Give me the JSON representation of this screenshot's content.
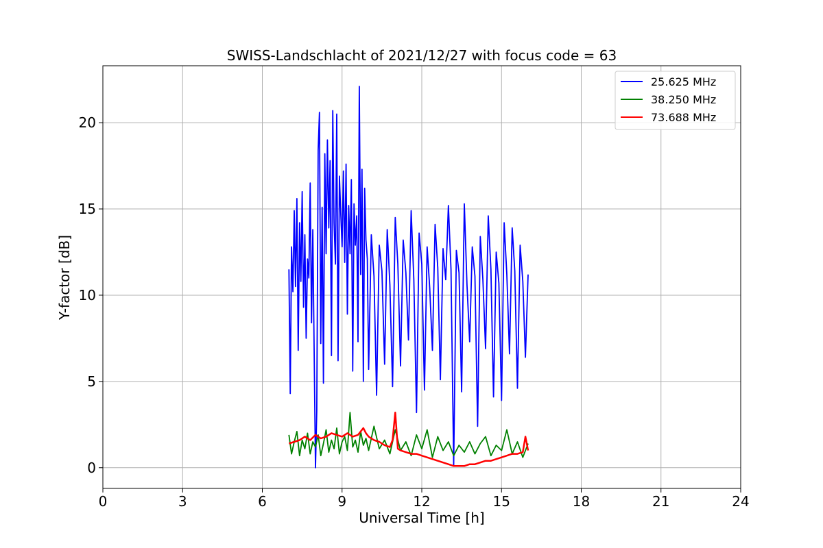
{
  "chart_data": {
    "type": "line",
    "title": "SWISS-Landschlacht of 2021/12/27 with focus code = 63",
    "xlabel": "Universal Time [h]",
    "ylabel": "Y-factor [dB]",
    "xlim": [
      0,
      24
    ],
    "ylim": [
      -1.2,
      23.3
    ],
    "xticks": [
      0,
      3,
      6,
      9,
      12,
      15,
      18,
      21,
      24
    ],
    "yticks": [
      0,
      5,
      10,
      15,
      20
    ],
    "grid": true,
    "legend_position": "top-right",
    "series": [
      {
        "name": "  25.625 MHz",
        "color": "#0000ff",
        "x": [
          7.0,
          7.05,
          7.1,
          7.15,
          7.2,
          7.25,
          7.3,
          7.35,
          7.4,
          7.45,
          7.5,
          7.55,
          7.6,
          7.65,
          7.7,
          7.75,
          7.8,
          7.85,
          7.9,
          7.95,
          8.0,
          8.05,
          8.1,
          8.15,
          8.2,
          8.25,
          8.3,
          8.35,
          8.4,
          8.45,
          8.5,
          8.55,
          8.6,
          8.65,
          8.7,
          8.75,
          8.8,
          8.85,
          8.9,
          8.95,
          9.0,
          9.05,
          9.1,
          9.15,
          9.2,
          9.25,
          9.3,
          9.35,
          9.4,
          9.45,
          9.5,
          9.55,
          9.6,
          9.65,
          9.7,
          9.75,
          9.8,
          9.85,
          9.9,
          9.95,
          10.0,
          10.1,
          10.2,
          10.3,
          10.4,
          10.5,
          10.6,
          10.7,
          10.8,
          10.9,
          11.0,
          11.1,
          11.2,
          11.3,
          11.4,
          11.5,
          11.6,
          11.7,
          11.8,
          11.9,
          12.0,
          12.1,
          12.2,
          12.3,
          12.4,
          12.5,
          12.6,
          12.7,
          12.8,
          12.9,
          13.0,
          13.1,
          13.2,
          13.3,
          13.4,
          13.5,
          13.6,
          13.7,
          13.8,
          13.9,
          14.0,
          14.1,
          14.2,
          14.3,
          14.4,
          14.5,
          14.6,
          14.7,
          14.8,
          14.9,
          15.0,
          15.1,
          15.2,
          15.3,
          15.4,
          15.5,
          15.6,
          15.7,
          15.8,
          15.9,
          16.0
        ],
        "y": [
          11.5,
          4.3,
          12.8,
          10.2,
          14.9,
          10.5,
          15.6,
          6.8,
          14.2,
          10.8,
          16.0,
          9.3,
          13.5,
          7.5,
          12.1,
          11.0,
          16.5,
          8.4,
          13.8,
          6.6,
          0.0,
          3.3,
          18.4,
          20.6,
          7.2,
          15.1,
          4.9,
          18.2,
          12.4,
          19.0,
          13.9,
          17.8,
          6.5,
          20.7,
          14.2,
          11.8,
          20.5,
          6.2,
          16.9,
          14.8,
          12.8,
          17.2,
          11.9,
          17.6,
          8.9,
          15.2,
          12.4,
          16.7,
          5.6,
          15.3,
          12.9,
          14.6,
          7.3,
          22.1,
          11.2,
          17.3,
          5.0,
          16.2,
          13.2,
          12.1,
          5.7,
          13.5,
          11.1,
          4.2,
          12.9,
          11.4,
          6.0,
          13.8,
          10.6,
          4.7,
          14.5,
          11.8,
          5.9,
          13.2,
          11.3,
          7.4,
          14.9,
          10.9,
          3.2,
          13.6,
          11.8,
          4.5,
          12.8,
          10.4,
          6.8,
          14.1,
          11.6,
          5.1,
          12.7,
          10.9,
          15.2,
          11.5,
          0.1,
          12.6,
          11.3,
          4.4,
          15.3,
          10.6,
          7.3,
          12.8,
          11.1,
          2.4,
          13.4,
          10.9,
          6.9,
          14.6,
          11.5,
          4.1,
          12.5,
          10.7,
          3.9,
          14.2,
          11.2,
          6.6,
          13.9,
          11.4,
          4.6,
          12.9,
          10.8,
          6.4,
          11.2
        ]
      },
      {
        "name": "  38.250 MHz",
        "color": "#008000",
        "x": [
          7.0,
          7.1,
          7.2,
          7.3,
          7.4,
          7.5,
          7.6,
          7.7,
          7.8,
          7.9,
          8.0,
          8.1,
          8.2,
          8.3,
          8.4,
          8.5,
          8.6,
          8.7,
          8.8,
          8.9,
          9.0,
          9.1,
          9.2,
          9.3,
          9.4,
          9.5,
          9.6,
          9.7,
          9.8,
          9.9,
          10.0,
          10.2,
          10.4,
          10.6,
          10.8,
          11.0,
          11.2,
          11.4,
          11.6,
          11.8,
          12.0,
          12.2,
          12.4,
          12.6,
          12.8,
          13.0,
          13.2,
          13.4,
          13.6,
          13.8,
          14.0,
          14.2,
          14.4,
          14.6,
          14.8,
          15.0,
          15.2,
          15.4,
          15.6,
          15.8,
          16.0
        ],
        "y": [
          1.9,
          0.8,
          1.5,
          2.1,
          0.7,
          1.6,
          1.1,
          2.0,
          0.8,
          1.5,
          1.2,
          1.9,
          0.7,
          1.4,
          2.2,
          0.9,
          1.6,
          1.1,
          2.3,
          0.8,
          1.5,
          1.8,
          1.0,
          3.2,
          1.2,
          1.6,
          0.9,
          2.1,
          1.3,
          1.7,
          1.0,
          2.4,
          1.1,
          1.6,
          0.8,
          2.2,
          1.0,
          1.5,
          0.7,
          1.9,
          1.1,
          2.2,
          0.6,
          1.8,
          1.0,
          1.5,
          0.7,
          1.3,
          0.9,
          1.5,
          0.8,
          1.4,
          1.8,
          0.7,
          1.3,
          1.0,
          2.2,
          0.8,
          1.5,
          0.6,
          1.4
        ]
      },
      {
        "name": "  73.688 MHz",
        "color": "#ff0000",
        "x": [
          7.0,
          7.2,
          7.4,
          7.6,
          7.8,
          8.0,
          8.2,
          8.4,
          8.6,
          8.8,
          9.0,
          9.2,
          9.4,
          9.6,
          9.8,
          9.9,
          10.0,
          10.2,
          10.4,
          10.6,
          10.8,
          10.9,
          11.0,
          11.1,
          11.2,
          11.4,
          11.6,
          11.8,
          12.0,
          12.2,
          12.4,
          12.6,
          12.8,
          13.0,
          13.2,
          13.4,
          13.6,
          13.8,
          14.0,
          14.2,
          14.4,
          14.6,
          14.8,
          15.0,
          15.2,
          15.4,
          15.6,
          15.8,
          15.9,
          16.0
        ],
        "y": [
          1.4,
          1.5,
          1.6,
          1.8,
          1.6,
          1.9,
          1.7,
          1.8,
          2.0,
          1.9,
          1.8,
          2.0,
          1.8,
          1.9,
          2.3,
          2.0,
          1.8,
          1.6,
          1.5,
          1.3,
          1.2,
          1.6,
          3.2,
          1.1,
          1.0,
          0.9,
          0.8,
          0.8,
          0.7,
          0.6,
          0.5,
          0.4,
          0.3,
          0.2,
          0.1,
          0.1,
          0.1,
          0.2,
          0.2,
          0.3,
          0.4,
          0.4,
          0.5,
          0.6,
          0.7,
          0.8,
          0.8,
          0.9,
          1.8,
          1.0
        ]
      }
    ]
  }
}
